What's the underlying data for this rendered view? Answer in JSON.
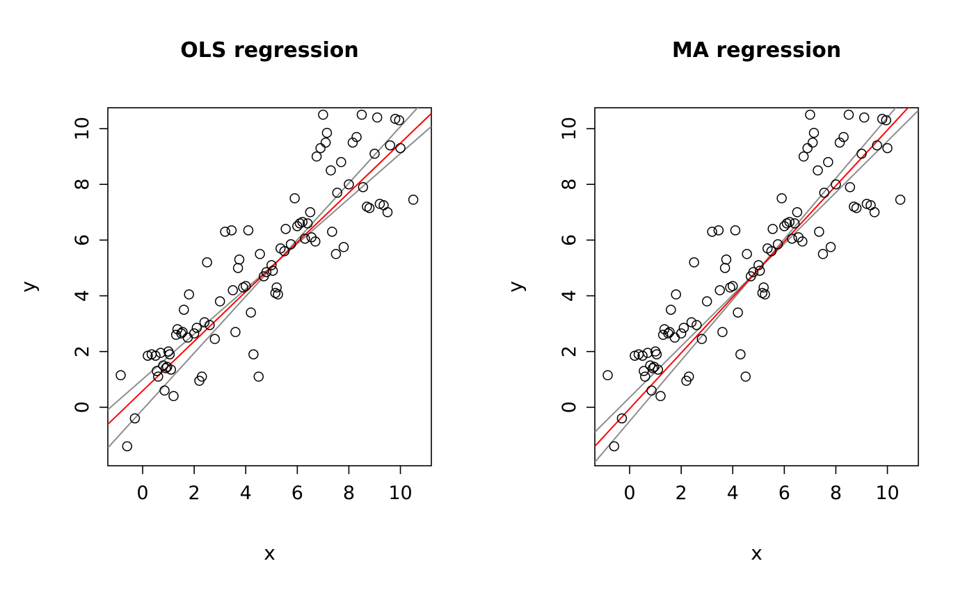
{
  "chart_data": {
    "type": "scatter",
    "x_range": [
      -1.35,
      11.2
    ],
    "y_range": [
      -2.1,
      10.75
    ],
    "x_ticks": [
      0,
      2,
      4,
      6,
      8,
      10
    ],
    "y_ticks": [
      0,
      2,
      4,
      6,
      8,
      10
    ],
    "colors": {
      "points": "#000000",
      "fit_line": "#ff0000",
      "interval_lines": "#8c8c8c",
      "axis": "#000000"
    },
    "points": [
      [
        -0.6,
        -1.4
      ],
      [
        -0.3,
        -0.4
      ],
      [
        -0.85,
        1.15
      ],
      [
        0.2,
        1.85
      ],
      [
        0.35,
        1.9
      ],
      [
        0.5,
        1.85
      ],
      [
        0.55,
        1.3
      ],
      [
        0.6,
        1.1
      ],
      [
        0.7,
        1.95
      ],
      [
        0.8,
        1.5
      ],
      [
        0.85,
        0.6
      ],
      [
        0.9,
        1.4
      ],
      [
        0.95,
        1.45
      ],
      [
        1.0,
        2.0
      ],
      [
        1.05,
        1.9
      ],
      [
        1.1,
        1.35
      ],
      [
        1.2,
        0.4
      ],
      [
        1.3,
        2.6
      ],
      [
        1.35,
        2.8
      ],
      [
        1.5,
        2.65
      ],
      [
        1.55,
        2.7
      ],
      [
        1.6,
        3.5
      ],
      [
        1.75,
        2.5
      ],
      [
        1.8,
        4.05
      ],
      [
        2.0,
        2.65
      ],
      [
        2.1,
        2.85
      ],
      [
        2.2,
        0.95
      ],
      [
        2.3,
        1.1
      ],
      [
        2.4,
        3.05
      ],
      [
        2.5,
        5.2
      ],
      [
        2.6,
        2.95
      ],
      [
        2.8,
        2.45
      ],
      [
        3.0,
        3.8
      ],
      [
        3.2,
        6.3
      ],
      [
        3.45,
        6.35
      ],
      [
        3.5,
        4.2
      ],
      [
        3.6,
        2.7
      ],
      [
        3.7,
        5.0
      ],
      [
        3.75,
        5.3
      ],
      [
        3.9,
        4.3
      ],
      [
        4.0,
        4.35
      ],
      [
        4.1,
        6.35
      ],
      [
        4.2,
        3.4
      ],
      [
        4.3,
        1.9
      ],
      [
        4.5,
        1.1
      ],
      [
        4.55,
        5.5
      ],
      [
        4.7,
        4.7
      ],
      [
        4.8,
        4.85
      ],
      [
        5.0,
        5.1
      ],
      [
        5.05,
        4.9
      ],
      [
        5.15,
        4.1
      ],
      [
        5.2,
        4.3
      ],
      [
        5.25,
        4.05
      ],
      [
        5.35,
        5.7
      ],
      [
        5.5,
        5.6
      ],
      [
        5.55,
        6.4
      ],
      [
        5.75,
        5.85
      ],
      [
        5.9,
        7.5
      ],
      [
        6.0,
        6.5
      ],
      [
        6.1,
        6.6
      ],
      [
        6.2,
        6.65
      ],
      [
        6.3,
        6.05
      ],
      [
        6.4,
        6.6
      ],
      [
        6.5,
        7.0
      ],
      [
        6.55,
        6.1
      ],
      [
        6.7,
        5.95
      ],
      [
        6.75,
        9.0
      ],
      [
        6.9,
        9.3
      ],
      [
        7.0,
        10.5
      ],
      [
        7.1,
        9.5
      ],
      [
        7.15,
        9.85
      ],
      [
        7.3,
        8.5
      ],
      [
        7.35,
        6.3
      ],
      [
        7.5,
        5.5
      ],
      [
        7.55,
        7.7
      ],
      [
        7.7,
        8.8
      ],
      [
        7.8,
        5.75
      ],
      [
        8.0,
        8.0
      ],
      [
        8.15,
        9.5
      ],
      [
        8.3,
        9.7
      ],
      [
        8.5,
        10.5
      ],
      [
        8.55,
        7.9
      ],
      [
        8.7,
        7.2
      ],
      [
        8.8,
        7.15
      ],
      [
        9.0,
        9.1
      ],
      [
        9.1,
        10.4
      ],
      [
        9.2,
        7.3
      ],
      [
        9.35,
        7.25
      ],
      [
        9.5,
        7.0
      ],
      [
        9.6,
        9.4
      ],
      [
        9.8,
        10.35
      ],
      [
        9.95,
        10.3
      ],
      [
        10.0,
        9.3
      ],
      [
        10.5,
        7.45
      ]
    ],
    "panels": [
      {
        "title": "OLS regression",
        "xlabel": "x",
        "ylabel": "y",
        "fit_line": {
          "slope": 0.889,
          "intercept": 0.589
        },
        "interval_lines": [
          {
            "slope": 0.81,
            "intercept": 1.007
          },
          {
            "slope": 1.016,
            "intercept": -0.085
          }
        ]
      },
      {
        "title": "MA regression",
        "xlabel": "x",
        "ylabel": "y",
        "fit_line": {
          "slope": 1.0,
          "intercept": -0.05
        },
        "interval_lines": [
          {
            "slope": 0.92,
            "intercept": 0.35
          },
          {
            "slope": 1.09,
            "intercept": -0.5
          }
        ]
      }
    ]
  }
}
